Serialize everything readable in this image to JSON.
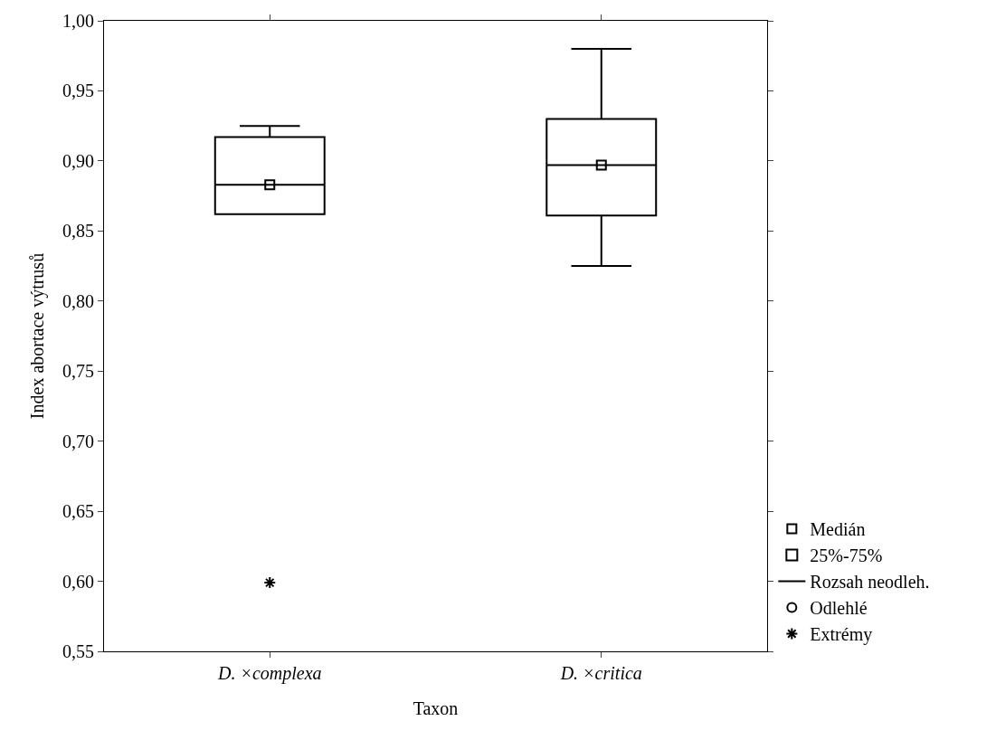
{
  "chart_data": {
    "type": "box",
    "xlabel": "Taxon",
    "ylabel": "Index abortace výtrusů",
    "categories": [
      "D. ×complexa",
      "D. ×critica"
    ],
    "ylim": [
      0.55,
      1.0
    ],
    "yticks": [
      {
        "value": 0.55,
        "label": "0,55"
      },
      {
        "value": 0.6,
        "label": "0,60"
      },
      {
        "value": 0.65,
        "label": "0,65"
      },
      {
        "value": 0.7,
        "label": "0,70"
      },
      {
        "value": 0.75,
        "label": "0,75"
      },
      {
        "value": 0.8,
        "label": "0,80"
      },
      {
        "value": 0.85,
        "label": "0,85"
      },
      {
        "value": 0.9,
        "label": "0,90"
      },
      {
        "value": 0.95,
        "label": "0,95"
      },
      {
        "value": 1.0,
        "label": "1,00"
      }
    ],
    "series": [
      {
        "name": "Medián",
        "type": "scatter",
        "marker": "square",
        "color": "#000000",
        "values": [
          0.883,
          0.897
        ]
      },
      {
        "name": "25%-75%",
        "color": "#000000",
        "boxes": [
          {
            "low": 0.862,
            "q1": 0.862,
            "median": 0.883,
            "q3": 0.917,
            "high": 0.925
          },
          {
            "low": 0.825,
            "q1": 0.861,
            "median": 0.897,
            "q3": 0.93,
            "high": 0.98
          }
        ]
      },
      {
        "name": "Rozsah neodleh.",
        "type": "line",
        "color": "#000000",
        "values": [
          null,
          null
        ]
      },
      {
        "name": "Odlehlé",
        "type": "scatter",
        "marker": "circle",
        "color": "#000000",
        "values": [
          null,
          null
        ]
      },
      {
        "name": "Extrémy",
        "type": "scatter",
        "marker": "cross",
        "color": "#000000",
        "values": [
          0.599,
          null
        ]
      }
    ],
    "legend": "bottom right"
  }
}
